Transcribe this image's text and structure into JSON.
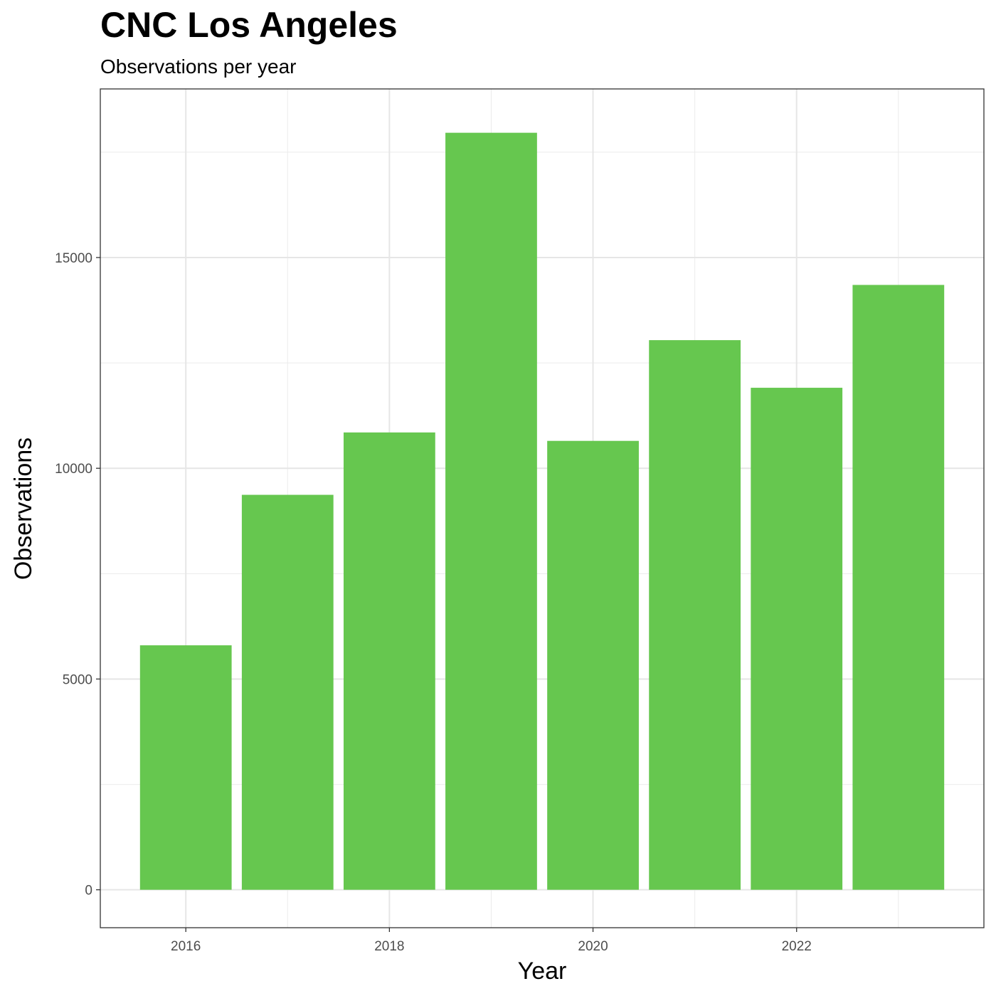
{
  "chart_data": {
    "type": "bar",
    "title": "CNC Los Angeles",
    "subtitle": "Observations per year",
    "xlabel": "Year",
    "ylabel": "Observations",
    "categories": [
      2016,
      2017,
      2018,
      2019,
      2020,
      2021,
      2022,
      2023
    ],
    "values": [
      5800,
      9370,
      10850,
      17960,
      10650,
      13040,
      11910,
      14350
    ],
    "xticks": [
      "2016",
      "2018",
      "2020",
      "2022"
    ],
    "yticks": [
      "0",
      "5000",
      "10000",
      "15000"
    ],
    "ylim": [
      -900,
      19000
    ],
    "xlim": [
      2015.16,
      2023.84
    ],
    "bar_color": "#66C74F",
    "grid": true,
    "legend": "none"
  }
}
